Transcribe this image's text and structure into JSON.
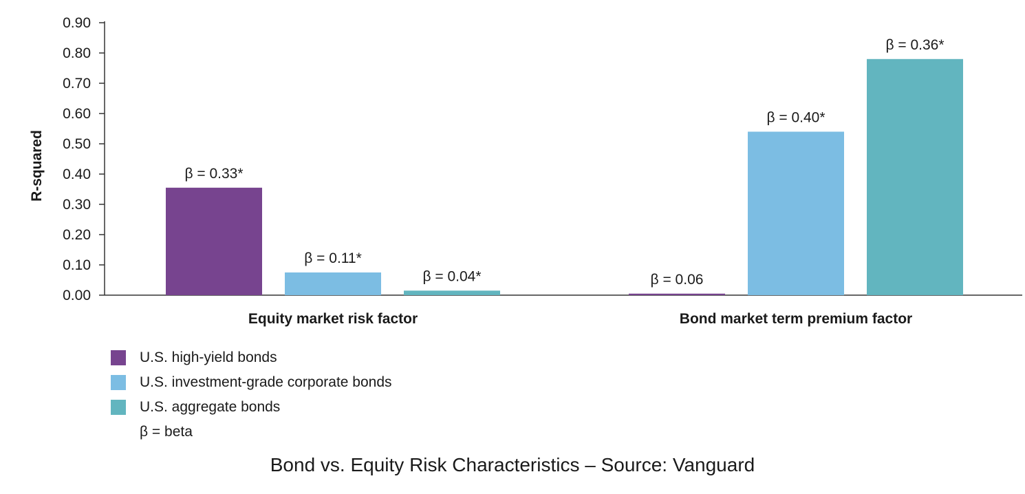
{
  "caption": "Bond vs. Equity Risk Characteristics – Source: Vanguard",
  "legend_note": "β = beta",
  "chart_data": {
    "type": "bar",
    "title": "",
    "xlabel": "",
    "ylabel": "R-squared",
    "ylim": [
      0,
      0.9
    ],
    "yticks": [
      "0.00",
      "0.10",
      "0.20",
      "0.30",
      "0.40",
      "0.50",
      "0.60",
      "0.70",
      "0.80",
      "0.90"
    ],
    "categories": [
      "Equity market risk factor",
      "Bond market term premium factor"
    ],
    "legend_position": "bottom-left",
    "grid": false,
    "series": [
      {
        "name": "U.S. high-yield bonds",
        "color": "#77448f",
        "values": [
          0.355,
          0.005
        ],
        "labels": [
          "β = 0.33*",
          "β = 0.06"
        ]
      },
      {
        "name": "U.S. investment-grade corporate bonds",
        "color": "#7cbde3",
        "values": [
          0.075,
          0.54
        ],
        "labels": [
          "β = 0.11*",
          "β = 0.40*"
        ]
      },
      {
        "name": "U.S. aggregate bonds",
        "color": "#62b5bf",
        "values": [
          0.015,
          0.78
        ],
        "labels": [
          "β = 0.04*",
          "β = 0.36*"
        ]
      }
    ]
  }
}
